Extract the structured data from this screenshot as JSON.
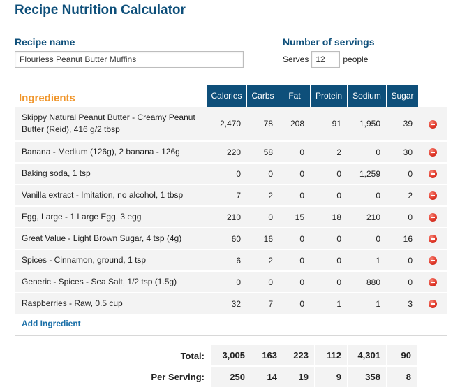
{
  "header": {
    "title": "Recipe Nutrition Calculator"
  },
  "recipe": {
    "label": "Recipe name",
    "name_value": "Flourless Peanut Butter Muffins"
  },
  "servings": {
    "label": "Number of servings",
    "serves_prefix": "Serves",
    "value": "12",
    "suffix": "people"
  },
  "table": {
    "ingredients_heading": "Ingredients",
    "columns": [
      "Calories",
      "Carbs",
      "Fat",
      "Protein",
      "Sodium",
      "Sugar"
    ],
    "rows": [
      {
        "name": "Skippy Natural Peanut Butter - Creamy Peanut Butter (Reid), 416 g/2 tbsp",
        "values": [
          "2,470",
          "78",
          "208",
          "91",
          "1,950",
          "39"
        ]
      },
      {
        "name": "Banana - Medium (126g), 2 banana - 126g",
        "values": [
          "220",
          "58",
          "0",
          "2",
          "0",
          "30"
        ]
      },
      {
        "name": "Baking soda, 1 tsp",
        "values": [
          "0",
          "0",
          "0",
          "0",
          "1,259",
          "0"
        ]
      },
      {
        "name": "Vanilla extract - Imitation, no alcohol, 1 tbsp",
        "values": [
          "7",
          "2",
          "0",
          "0",
          "0",
          "2"
        ]
      },
      {
        "name": "Egg, Large - 1 Large Egg, 3 egg",
        "values": [
          "210",
          "0",
          "15",
          "18",
          "210",
          "0"
        ]
      },
      {
        "name": "Great Value - Light Brown Sugar, 4 tsp (4g)",
        "values": [
          "60",
          "16",
          "0",
          "0",
          "0",
          "16"
        ]
      },
      {
        "name": "Spices - Cinnamon, ground, 1 tsp",
        "values": [
          "6",
          "2",
          "0",
          "0",
          "1",
          "0"
        ]
      },
      {
        "name": "Generic - Spices - Sea Salt, 1/2 tsp (1.5g)",
        "values": [
          "0",
          "0",
          "0",
          "0",
          "880",
          "0"
        ]
      },
      {
        "name": "Raspberries - Raw, 0.5 cup",
        "values": [
          "32",
          "7",
          "0",
          "1",
          "1",
          "3"
        ]
      }
    ],
    "delete_icon": "remove-circle-icon",
    "delete_color": "#e23a2b"
  },
  "add_ingredient_label": "Add Ingredient",
  "totals": {
    "total_label": "Total:",
    "total_values": [
      "3,005",
      "163",
      "223",
      "112",
      "4,301",
      "90"
    ],
    "per_serving_label": "Per Serving:",
    "per_serving_values": [
      "250",
      "14",
      "19",
      "9",
      "358",
      "8"
    ]
  },
  "colors": {
    "title": "#0e4f7a",
    "header_bg": "#0e4f7a",
    "ingredients_heading": "#f0952a",
    "link": "#1a6fa8",
    "row_bg": "#f3f3f3"
  }
}
